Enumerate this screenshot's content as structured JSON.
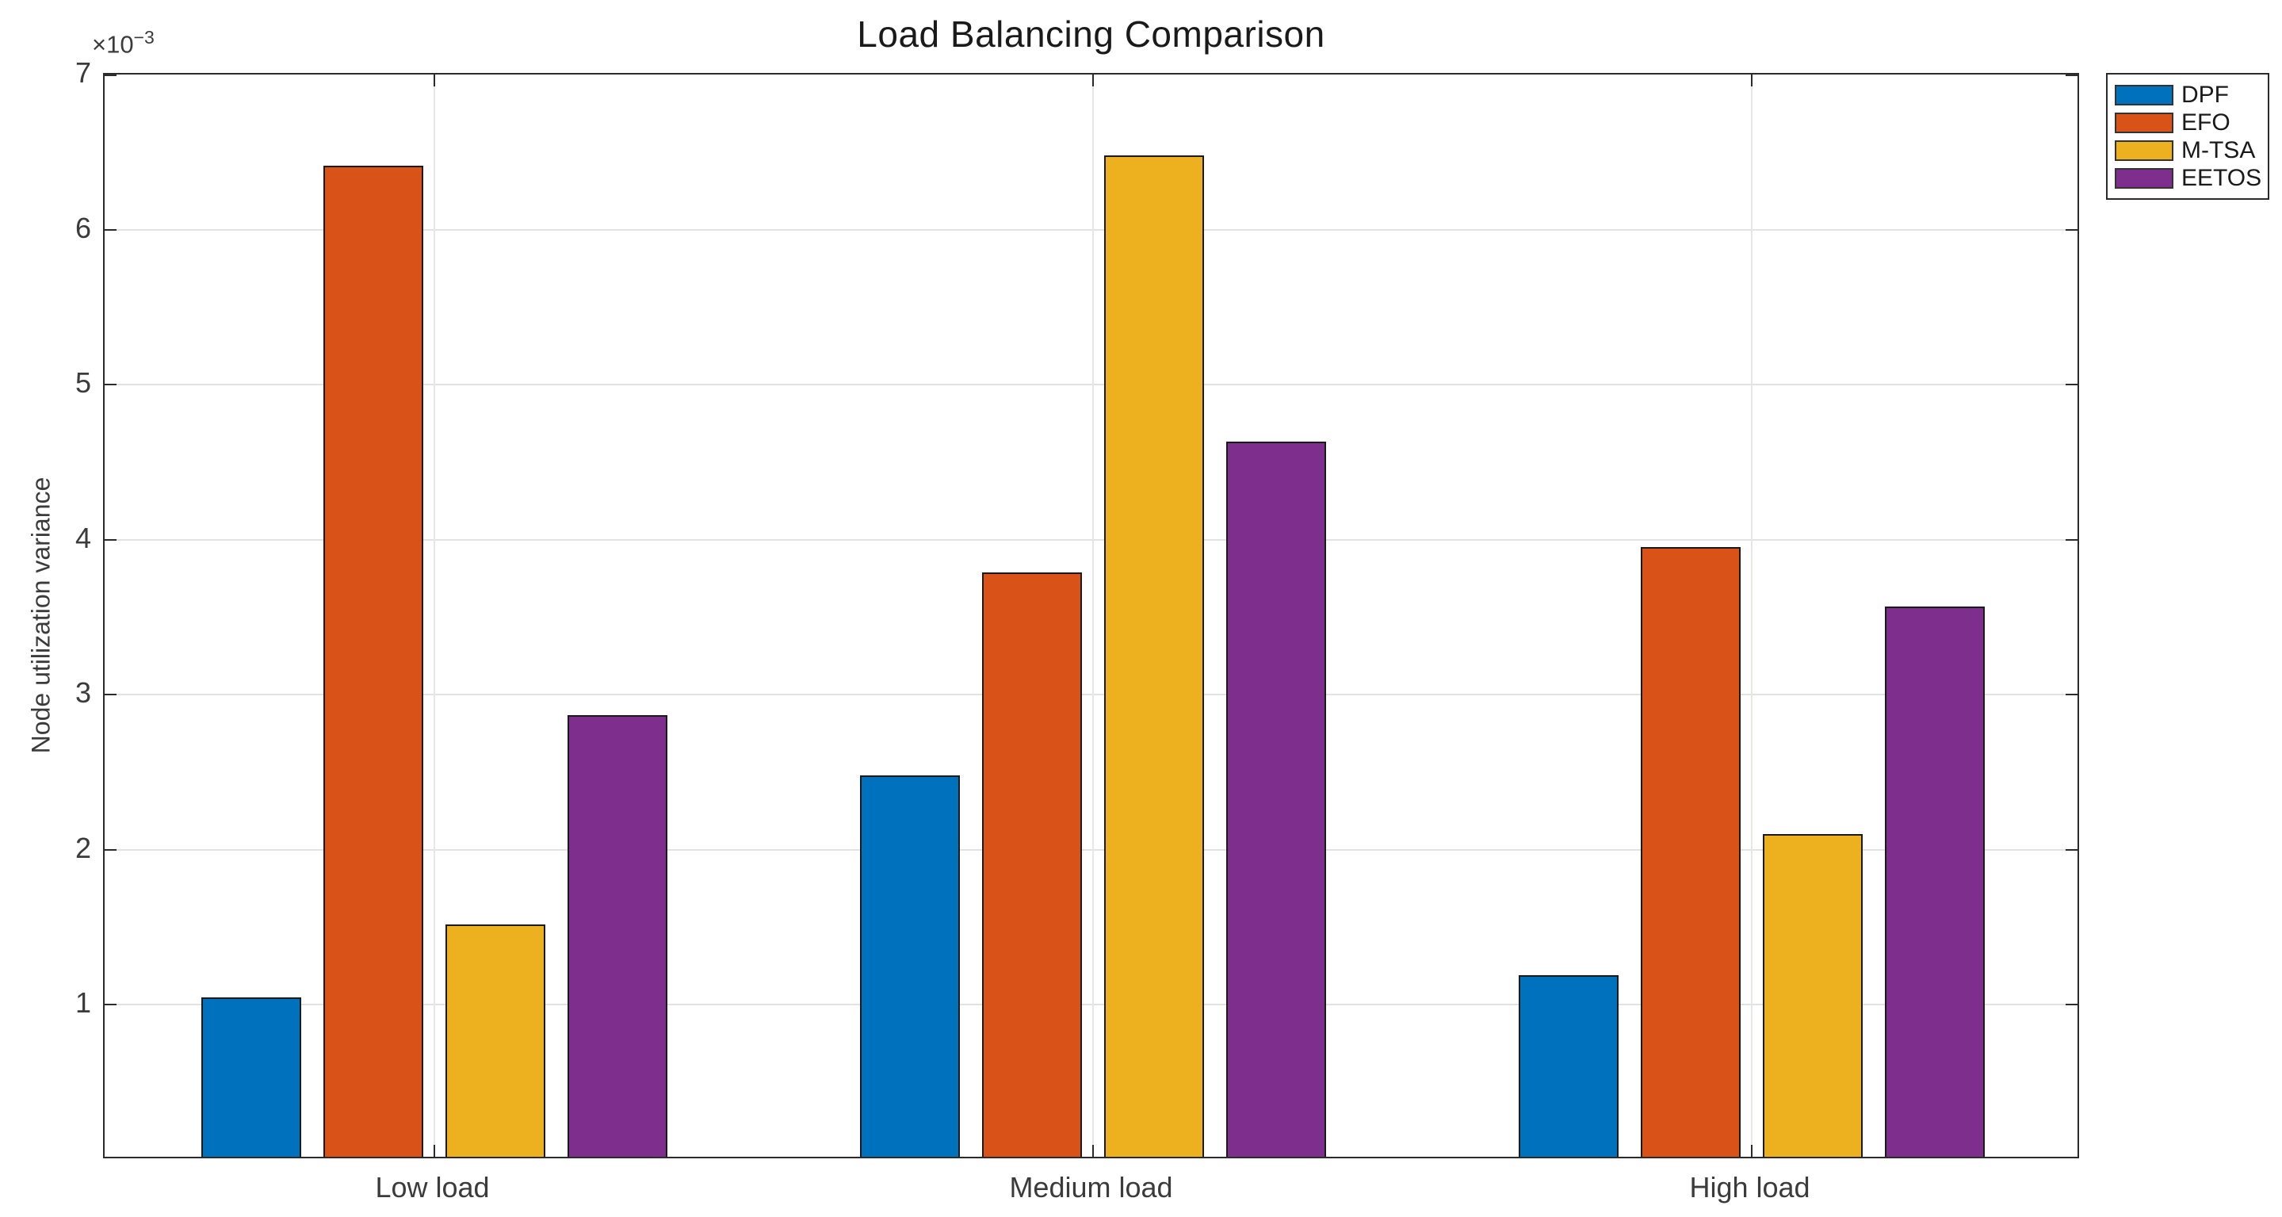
{
  "chart_data": {
    "type": "bar",
    "title": "Load Balancing Comparison",
    "xlabel": "",
    "ylabel": "Node utilization variance",
    "y_exponent_base": "×10",
    "y_exponent_power": "−3",
    "unit_multiplier": 0.001,
    "categories": [
      "Low load",
      "Medium load",
      "High load"
    ],
    "series": [
      {
        "name": "DPF",
        "color": "#0072BD",
        "values": [
          1.03,
          2.46,
          1.17
        ]
      },
      {
        "name": "EFO",
        "color": "#D95319",
        "values": [
          6.39,
          3.77,
          3.93
        ]
      },
      {
        "name": "M-TSA",
        "color": "#EDB120",
        "values": [
          1.5,
          6.46,
          2.08
        ]
      },
      {
        "name": "EETOS",
        "color": "#7E2F8E",
        "values": [
          2.85,
          4.61,
          3.55
        ]
      }
    ],
    "ylim": [
      0,
      7
    ],
    "yticks": [
      1,
      2,
      3,
      4,
      5,
      6,
      7
    ],
    "grid": true,
    "legend_position": "outside-top-right",
    "bar_edge_color": "#1a1a1a",
    "axis_color": "#2b2b2b",
    "grid_color": "#e2e2e2",
    "background": "#ffffff"
  }
}
